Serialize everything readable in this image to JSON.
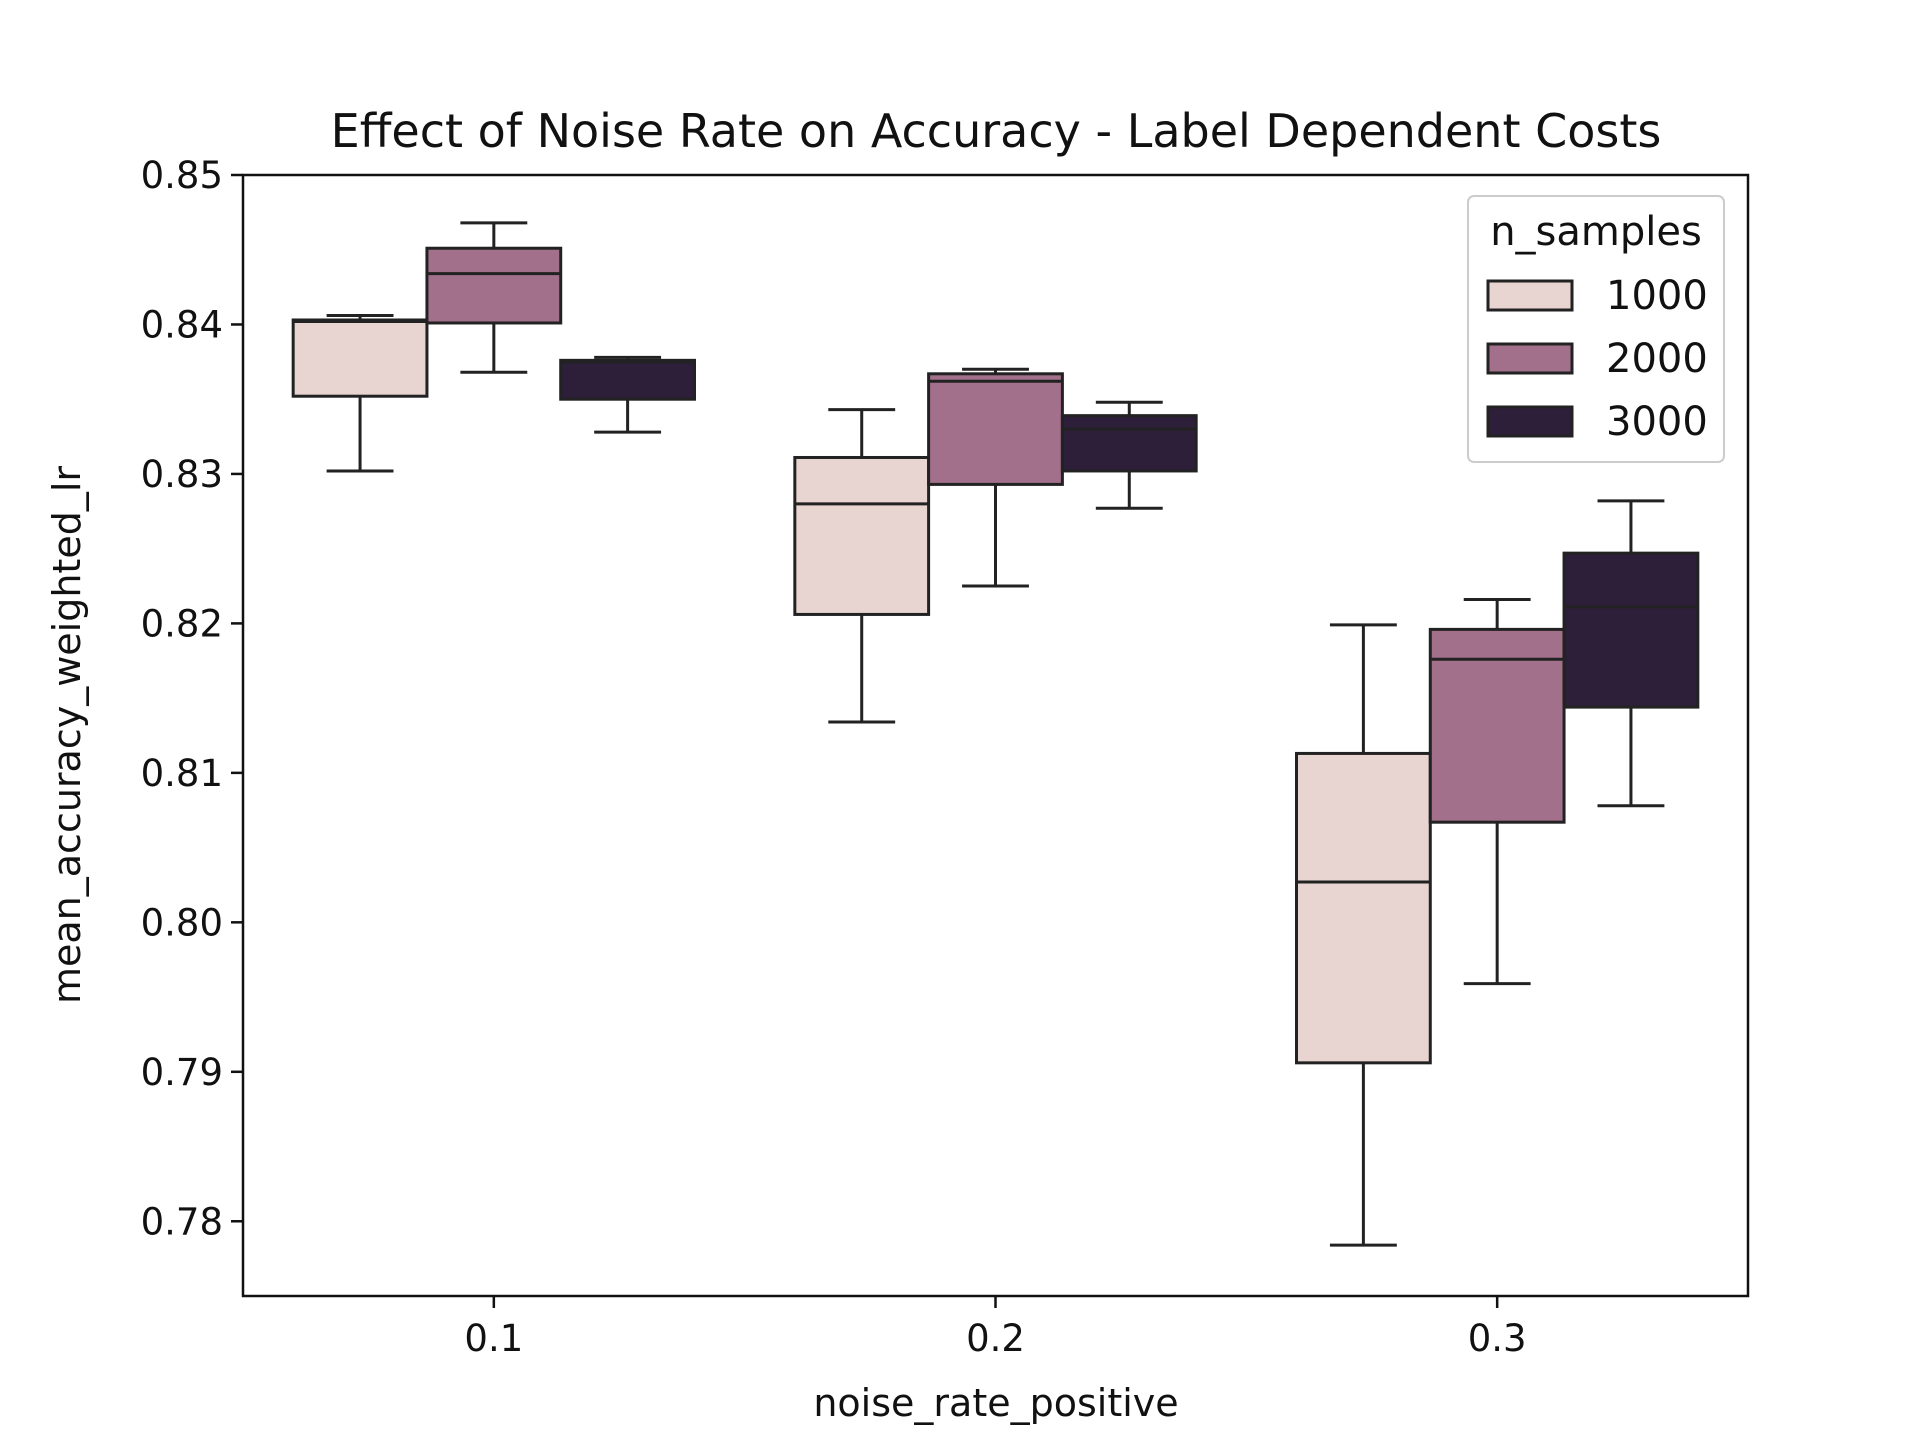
{
  "chart_data": {
    "type": "box",
    "title": "Effect of Noise Rate on Accuracy - Label Dependent Costs",
    "xlabel": "noise_rate_positive",
    "ylabel": "mean_accuracy_weighted_lr",
    "categories": [
      "0.1",
      "0.2",
      "0.3"
    ],
    "ylim": [
      0.775,
      0.85
    ],
    "yticks": [
      "0.78",
      "0.79",
      "0.80",
      "0.81",
      "0.82",
      "0.83",
      "0.84",
      "0.85"
    ],
    "grid": false,
    "legend": {
      "title": "n_samples",
      "position": "top-right"
    },
    "series": [
      {
        "name": "1000",
        "color": "#e8d5d1",
        "boxes": [
          {
            "whisker_low": 0.8302,
            "q1": 0.8352,
            "median": 0.8402,
            "q3": 0.8403,
            "whisker_high": 0.8406
          },
          {
            "whisker_low": 0.8134,
            "q1": 0.8206,
            "median": 0.828,
            "q3": 0.8311,
            "whisker_high": 0.8343
          },
          {
            "whisker_low": 0.7784,
            "q1": 0.7906,
            "median": 0.8027,
            "q3": 0.8113,
            "whisker_high": 0.8199
          }
        ]
      },
      {
        "name": "2000",
        "color": "#a2708b",
        "boxes": [
          {
            "whisker_low": 0.8368,
            "q1": 0.8401,
            "median": 0.8434,
            "q3": 0.8451,
            "whisker_high": 0.8468
          },
          {
            "whisker_low": 0.8225,
            "q1": 0.8293,
            "median": 0.8362,
            "q3": 0.8367,
            "whisker_high": 0.837
          },
          {
            "whisker_low": 0.7959,
            "q1": 0.8067,
            "median": 0.8176,
            "q3": 0.8196,
            "whisker_high": 0.8216
          }
        ]
      },
      {
        "name": "3000",
        "color": "#2d1f3a",
        "boxes": [
          {
            "whisker_low": 0.8328,
            "q1": 0.835,
            "median": 0.8375,
            "q3": 0.8376,
            "whisker_high": 0.8378
          },
          {
            "whisker_low": 0.8277,
            "q1": 0.8302,
            "median": 0.833,
            "q3": 0.8339,
            "whisker_high": 0.8348
          },
          {
            "whisker_low": 0.8078,
            "q1": 0.8144,
            "median": 0.8211,
            "q3": 0.8247,
            "whisker_high": 0.8282
          }
        ]
      }
    ]
  }
}
